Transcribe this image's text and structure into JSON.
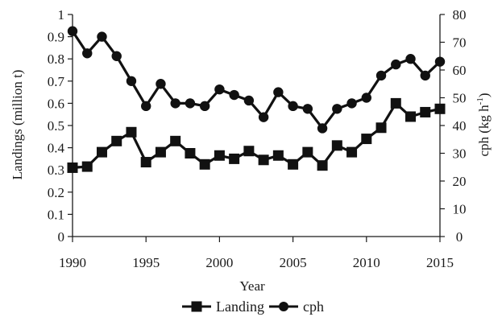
{
  "chart_data": {
    "type": "line",
    "xlabel": "Year",
    "ylabel_left": "Landings (million t)",
    "ylabel_right_main": "cph (kg h",
    "ylabel_right_sup": "-1",
    "ylabel_right_close": ")",
    "xlim": [
      1990,
      2015
    ],
    "ylim_left": [
      0,
      1
    ],
    "ylim_right": [
      0,
      80
    ],
    "x_ticks": [
      1990,
      1995,
      2000,
      2005,
      2010,
      2015
    ],
    "y_left_ticks": [
      0,
      0.1,
      0.2,
      0.3,
      0.4,
      0.5,
      0.6,
      0.7,
      0.8,
      0.9,
      1
    ],
    "y_left_tick_labels": [
      "0",
      "0.1",
      "0.2",
      "0.3",
      "0.4",
      "0.5",
      "0.6",
      "0.7",
      "0.8",
      "0.9",
      "1"
    ],
    "y_right_ticks": [
      0,
      10,
      20,
      30,
      40,
      50,
      60,
      70,
      80
    ],
    "grid": false,
    "legend_position": "bottom-center",
    "series": [
      {
        "name": "Landing",
        "axis": "left",
        "marker": "square",
        "color": "#111111",
        "x": [
          1990,
          1991,
          1992,
          1993,
          1994,
          1995,
          1996,
          1997,
          1998,
          1999,
          2000,
          2001,
          2002,
          2003,
          2004,
          2005,
          2006,
          2007,
          2008,
          2009,
          2010,
          2011,
          2012,
          2013,
          2014,
          2015
        ],
        "y": [
          0.31,
          0.315,
          0.38,
          0.43,
          0.47,
          0.335,
          0.38,
          0.43,
          0.375,
          0.325,
          0.365,
          0.35,
          0.385,
          0.345,
          0.365,
          0.325,
          0.38,
          0.32,
          0.41,
          0.38,
          0.44,
          0.49,
          0.6,
          0.54,
          0.56,
          0.575
        ]
      },
      {
        "name": "cph",
        "axis": "right",
        "marker": "circle",
        "color": "#111111",
        "x": [
          1990,
          1991,
          1992,
          1993,
          1994,
          1995,
          1996,
          1997,
          1998,
          1999,
          2000,
          2001,
          2002,
          2003,
          2004,
          2005,
          2006,
          2007,
          2008,
          2009,
          2010,
          2011,
          2012,
          2013,
          2014,
          2015
        ],
        "y": [
          74,
          66,
          72,
          65,
          56,
          47,
          55,
          48,
          48,
          47,
          53,
          51,
          49,
          43,
          52,
          47,
          46,
          39,
          46,
          48,
          50,
          58,
          62,
          64,
          58,
          63
        ]
      }
    ]
  }
}
